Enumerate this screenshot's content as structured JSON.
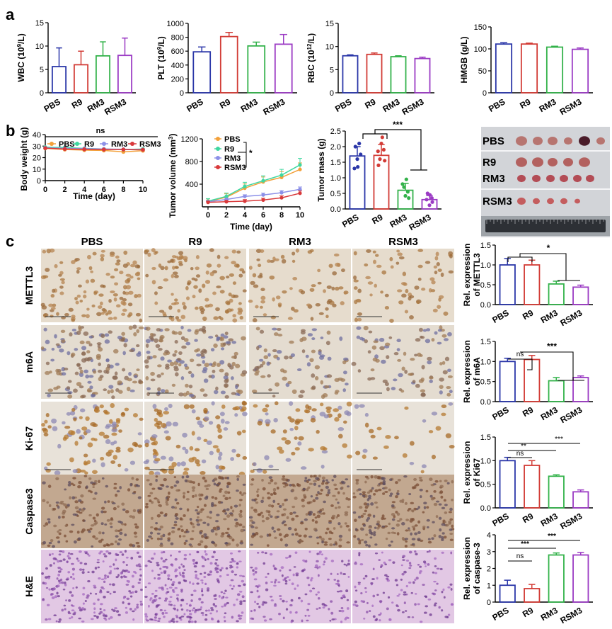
{
  "panel_labels": [
    "a",
    "b",
    "c"
  ],
  "colors": {
    "PBS": "#2a36a8",
    "R9": "#d23b35",
    "RM3": "#33b24a",
    "RSM3": "#9b3bc4",
    "PBS_line": "#f3a13a",
    "R9_line": "#3fd7a0",
    "RM3_line": "#8c90e8",
    "RSM3_line": "#d9393b"
  },
  "chart_data": [
    {
      "id": "wbc",
      "type": "bar",
      "ylabel_main": "WBC (10",
      "ylabel_sup": "9",
      "ylabel_end": "/L)",
      "categories": [
        "PBS",
        "R9",
        "RM3",
        "RSM3"
      ],
      "values": [
        5.6,
        6.0,
        7.9,
        8.0
      ],
      "errors": [
        4.0,
        2.9,
        3.0,
        3.7
      ],
      "ylim": [
        0,
        15
      ],
      "yticks": [
        "0",
        "5",
        "10",
        "15"
      ]
    },
    {
      "id": "plt",
      "type": "bar",
      "ylabel_main": "PLT (10",
      "ylabel_sup": "9",
      "ylabel_end": "/L)",
      "categories": [
        "PBS",
        "R9",
        "RM3",
        "RSM3"
      ],
      "values": [
        590,
        810,
        675,
        700
      ],
      "errors": [
        70,
        60,
        55,
        140
      ],
      "ylim": [
        0,
        1000
      ],
      "yticks": [
        "0",
        "200",
        "400",
        "600",
        "800",
        "1000"
      ]
    },
    {
      "id": "rbc",
      "type": "bar",
      "ylabel_main": "RBC (10",
      "ylabel_sup": "12",
      "ylabel_end": "/L)",
      "categories": [
        "PBS",
        "R9",
        "RM3",
        "RSM3"
      ],
      "values": [
        8.0,
        8.3,
        7.8,
        7.4
      ],
      "errors": [
        0.2,
        0.3,
        0.2,
        0.3
      ],
      "ylim": [
        0,
        15
      ],
      "yticks": [
        "0",
        "5",
        "10",
        "15"
      ]
    },
    {
      "id": "hmgb",
      "type": "bar",
      "ylabel_main": "HMGB (g/L)",
      "ylabel_sup": "",
      "ylabel_end": "",
      "categories": [
        "PBS",
        "R9",
        "RM3",
        "RSM3"
      ],
      "values": [
        111,
        111,
        104,
        99
      ],
      "errors": [
        3,
        2,
        2,
        3
      ],
      "ylim": [
        0,
        150
      ],
      "yticks": [
        "0",
        "50",
        "100",
        "150"
      ]
    },
    {
      "id": "bodyweight",
      "type": "line",
      "ylabel": "Body weight (g)",
      "xlabel": "Time (day)",
      "x": [
        0,
        2,
        4,
        6,
        8,
        10
      ],
      "xticks": [
        "0",
        "2",
        "4",
        "6",
        "8",
        "10"
      ],
      "ylim": [
        0,
        40
      ],
      "yticks": [
        "0",
        "10",
        "20",
        "30",
        "40"
      ],
      "annotation": "ns",
      "series": [
        {
          "name": "PBS",
          "values": [
            28.0,
            27.0,
            26.5,
            26.2,
            25.0,
            26.0
          ]
        },
        {
          "name": "R9",
          "values": [
            29.0,
            28.8,
            28.0,
            27.5,
            27.0,
            27.5
          ]
        },
        {
          "name": "RM3",
          "values": [
            28.5,
            28.0,
            27.8,
            27.5,
            27.2,
            27.0
          ]
        },
        {
          "name": "RSM3",
          "values": [
            28.2,
            27.5,
            27.2,
            27.0,
            27.0,
            26.8
          ]
        }
      ]
    },
    {
      "id": "tumorvolume",
      "type": "line",
      "ylabel_main": "Tumor volume (mm",
      "ylabel_sup": "3",
      "ylabel_end": ")",
      "xlabel": "Time (day)",
      "x": [
        0,
        2,
        4,
        6,
        8,
        10
      ],
      "xticks": [
        "0",
        "2",
        "4",
        "6",
        "8",
        "10"
      ],
      "ylim": [
        0,
        1200
      ],
      "yticks": [
        "400",
        "800",
        "1200"
      ],
      "annotation": "*",
      "series": [
        {
          "name": "PBS",
          "values": [
            95,
            170,
            330,
            440,
            520,
            660
          ]
        },
        {
          "name": "R9",
          "values": [
            100,
            185,
            360,
            460,
            560,
            740
          ]
        },
        {
          "name": "RM3",
          "values": [
            90,
            130,
            185,
            210,
            250,
            310
          ]
        },
        {
          "name": "RSM3",
          "values": [
            80,
            90,
            100,
            120,
            160,
            240
          ]
        }
      ]
    },
    {
      "id": "tumormass",
      "type": "bar",
      "ylabel": "Tumor mass (g)",
      "categories": [
        "PBS",
        "R9",
        "RM3",
        "RSM3"
      ],
      "values": [
        1.7,
        1.72,
        0.6,
        0.3
      ],
      "errors": [
        0.3,
        0.35,
        0.22,
        0.13
      ],
      "ylim": [
        0,
        2.5
      ],
      "yticks": [
        "0.0",
        "0.5",
        "1.0",
        "1.5",
        "2.0",
        "2.5"
      ],
      "annotation": "***"
    },
    {
      "id": "mettl3",
      "type": "bar",
      "ylabel1": "Rel. expression",
      "ylabel2": "of METTL3",
      "categories": [
        "PBS",
        "R9",
        "RM3",
        "RSM3"
      ],
      "values": [
        1.0,
        1.0,
        0.52,
        0.44
      ],
      "errors": [
        0.16,
        0.12,
        0.07,
        0.05
      ],
      "ylim": [
        0,
        1.5
      ],
      "yticks": [
        "0.0",
        "0.5",
        "1.0",
        "1.5"
      ],
      "annotation": "*"
    },
    {
      "id": "m6a",
      "type": "bar",
      "ylabel1": "Rel. expression",
      "ylabel2": "of m6A",
      "categories": [
        "PBS",
        "R9",
        "RM3",
        "RSM3"
      ],
      "values": [
        1.0,
        1.05,
        0.52,
        0.6
      ],
      "errors": [
        0.08,
        0.1,
        0.08,
        0.04
      ],
      "ylim": [
        0,
        1.5
      ],
      "yticks": [
        "0.0",
        "0.5",
        "1.0",
        "1.5"
      ],
      "annotations": [
        "ns",
        "***"
      ]
    },
    {
      "id": "ki67",
      "type": "bar",
      "ylabel1": "Rel. expression",
      "ylabel2": "of Ki67",
      "categories": [
        "PBS",
        "R9",
        "RM3",
        "RSM3"
      ],
      "values": [
        1.0,
        0.9,
        0.67,
        0.34
      ],
      "errors": [
        0.07,
        0.1,
        0.03,
        0.04
      ],
      "ylim": [
        0,
        1.5
      ],
      "yticks": [
        "0.0",
        "0.5",
        "1.0",
        "1.5"
      ],
      "annotations": [
        "ns",
        "**",
        "***"
      ]
    },
    {
      "id": "caspase3",
      "type": "bar",
      "ylabel1": "Rel. expression",
      "ylabel2": "of caspase-3",
      "categories": [
        "PBS",
        "R9",
        "RM3",
        "RSM3"
      ],
      "values": [
        1.0,
        0.8,
        2.8,
        2.8
      ],
      "errors": [
        0.3,
        0.25,
        0.12,
        0.15
      ],
      "ylim": [
        0,
        4
      ],
      "yticks": [
        "0",
        "1",
        "2",
        "3",
        "4"
      ],
      "annotations": [
        "ns",
        "***",
        "***"
      ]
    }
  ],
  "photo": {
    "row_labels": [
      "PBS",
      "R9",
      "RM3",
      "RSM3"
    ]
  },
  "ihc": {
    "columns": [
      "PBS",
      "R9",
      "RM3",
      "RSM3"
    ],
    "rows": [
      "METTL3",
      "m6A",
      "Ki-67",
      "Caspase3",
      "H&E"
    ]
  }
}
